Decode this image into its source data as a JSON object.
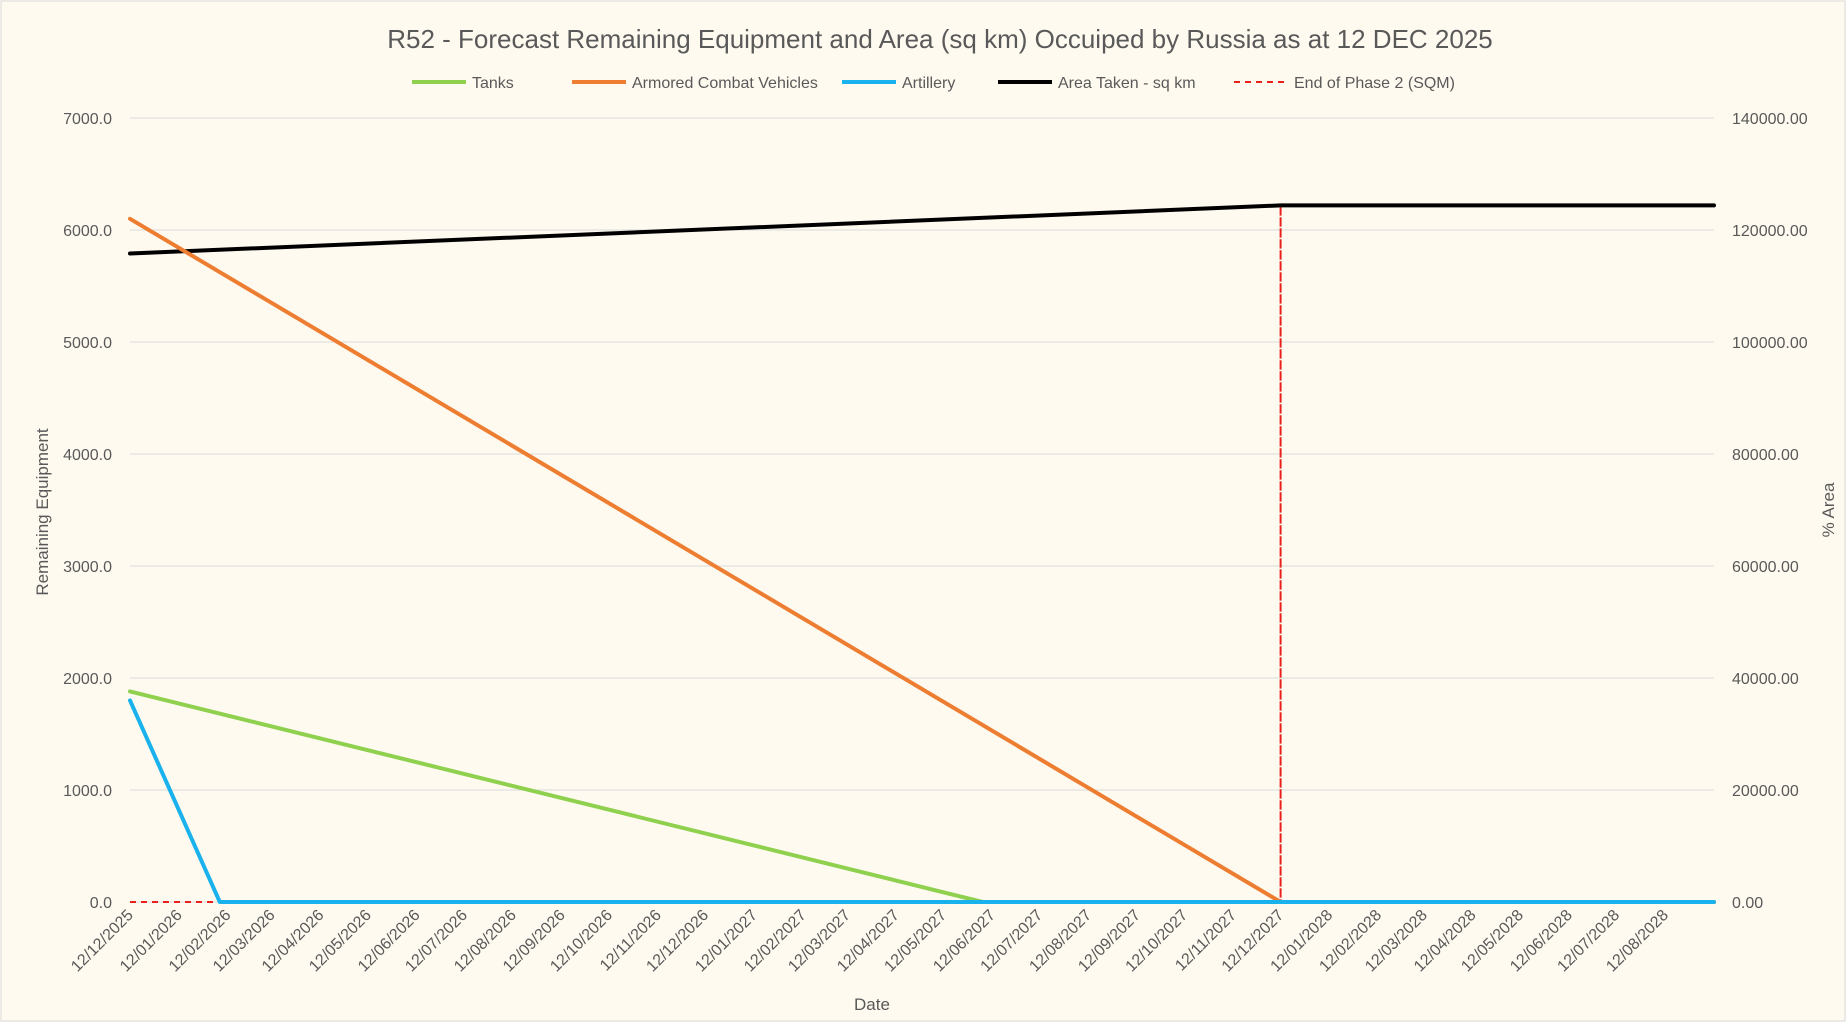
{
  "chart_data": {
    "type": "line",
    "title": "R52 - Forecast Remaining Equipment and Area (sq km) Occuiped by Russia as at 12 DEC 2025",
    "xlabel": "Date",
    "ylabel": "Remaining Equipment",
    "y2label": "% Area",
    "ylim": [
      0,
      7000
    ],
    "y2lim": [
      0,
      140000
    ],
    "yticks": [
      "0.0",
      "1000.0",
      "2000.0",
      "3000.0",
      "4000.0",
      "5000.0",
      "6000.0",
      "7000.0"
    ],
    "y2ticks": [
      "0.00",
      "20000.00",
      "40000.00",
      "60000.00",
      "80000.00",
      "100000.00",
      "120000.00",
      "140000.00"
    ],
    "xlim": [
      "2025-12-12",
      "2028-09-12"
    ],
    "xticks": [
      "12/12/2025",
      "12/01/2026",
      "12/02/2026",
      "12/03/2026",
      "12/04/2026",
      "12/05/2026",
      "12/06/2026",
      "12/07/2026",
      "12/08/2026",
      "12/09/2026",
      "12/10/2026",
      "12/11/2026",
      "12/12/2026",
      "12/01/2027",
      "12/02/2027",
      "12/03/2027",
      "12/04/2027",
      "12/05/2027",
      "12/06/2027",
      "12/07/2027",
      "12/08/2027",
      "12/09/2027",
      "12/10/2027",
      "12/11/2027",
      "12/12/2027",
      "12/01/2028",
      "12/02/2028",
      "12/03/2028",
      "12/04/2028",
      "12/05/2028",
      "12/06/2028",
      "12/07/2028",
      "12/08/2028"
    ],
    "grid": true,
    "legend_position": "top",
    "series": [
      {
        "name": "Tanks",
        "color": "#8fd14f",
        "axis": "left",
        "style": "solid",
        "x": [
          "2025-12-12",
          "2027-06-06",
          "2028-09-12"
        ],
        "y": [
          1880,
          0,
          0
        ]
      },
      {
        "name": "Armored Combat Vehicles",
        "color": "#ed7d31",
        "axis": "left",
        "style": "solid",
        "x": [
          "2025-12-12",
          "2027-12-12",
          "2028-09-12"
        ],
        "y": [
          6100,
          0,
          0
        ]
      },
      {
        "name": "Artillery",
        "color": "#1ab2ec",
        "axis": "left",
        "style": "solid",
        "x": [
          "2025-12-12",
          "2026-02-07",
          "2028-09-12"
        ],
        "y": [
          1800,
          0,
          0
        ]
      },
      {
        "name": "Area Taken - sq km",
        "color": "#000000",
        "axis": "right",
        "style": "solid",
        "x": [
          "2025-12-12",
          "2027-12-12",
          "2028-09-12"
        ],
        "y": [
          115800,
          124400,
          124400
        ]
      },
      {
        "name": "End of Phase 2 (SQM)",
        "color": "#e8211d",
        "axis": "right",
        "style": "dashed",
        "x": [
          "2025-12-12",
          "2027-12-12",
          "2027-12-12",
          "2027-12-12",
          "2028-09-12"
        ],
        "y": [
          0,
          0,
          124400,
          0,
          0
        ]
      }
    ]
  }
}
